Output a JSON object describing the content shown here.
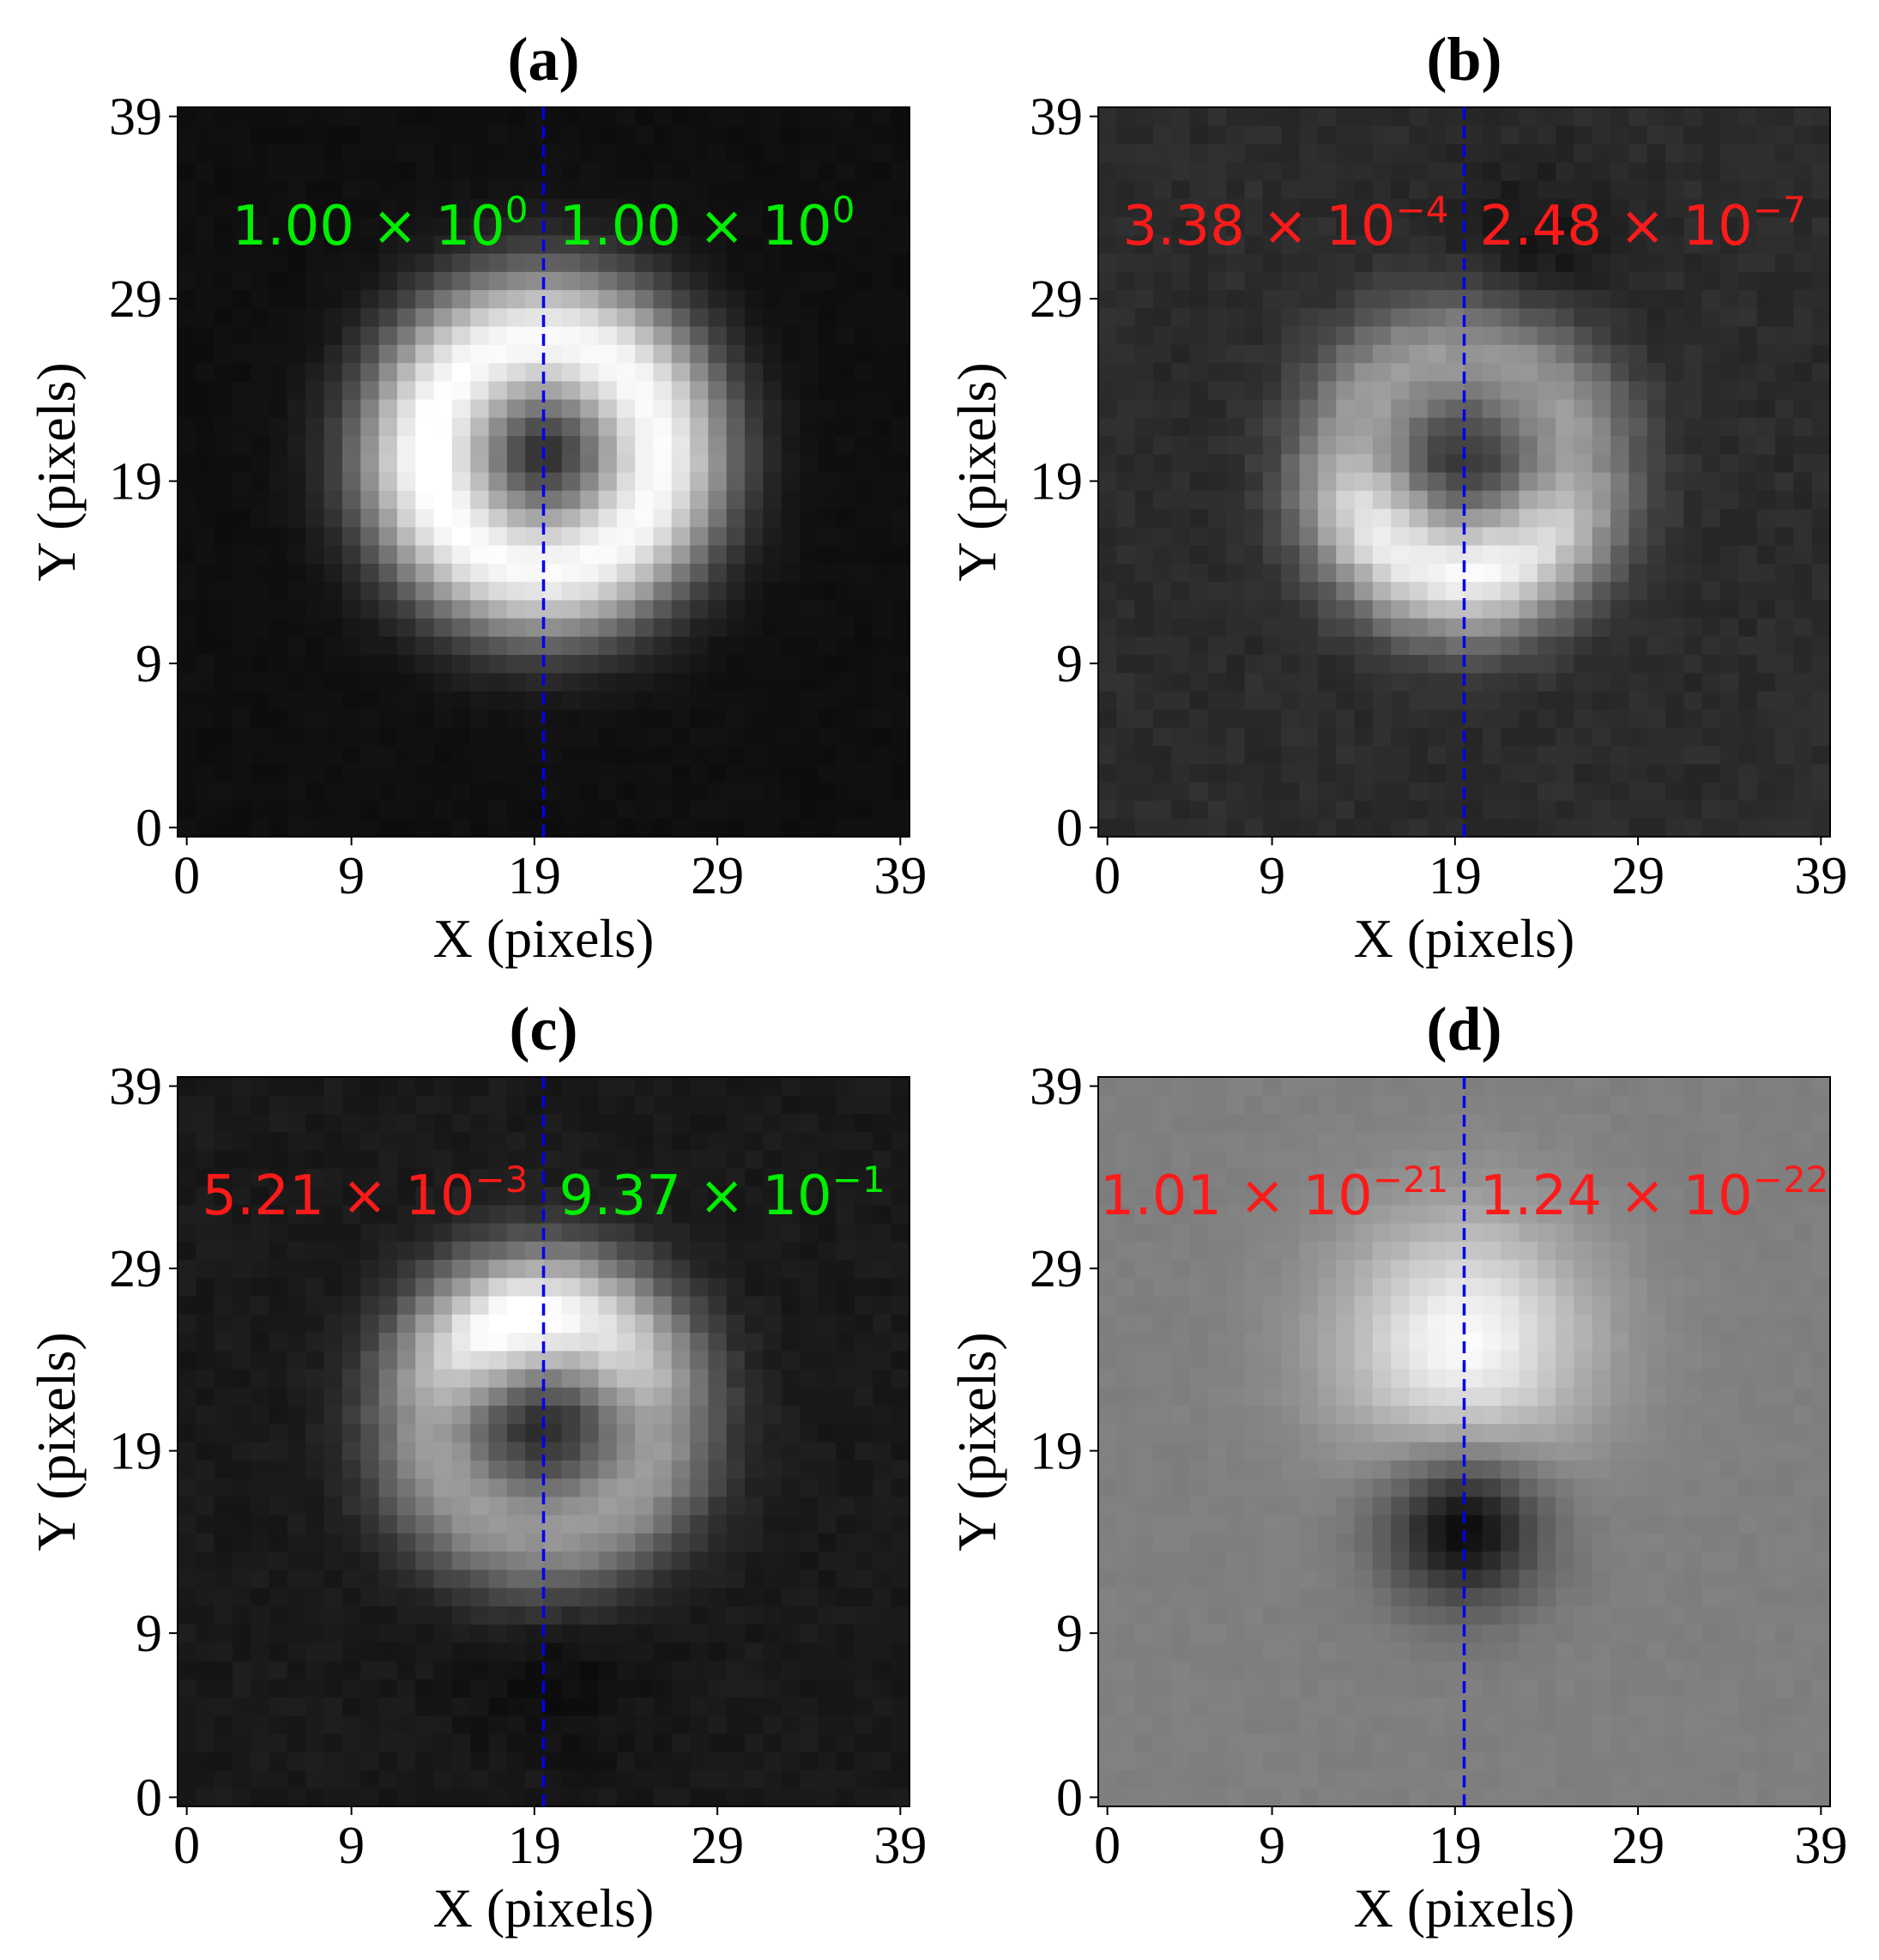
{
  "colors": {
    "pass": "#00ee00",
    "fail": "#ff1a1a",
    "center_line": "#0000ee"
  },
  "chart_data": [
    {
      "type": "heatmap",
      "title": "(a)",
      "xlabel": "X (pixels)",
      "ylabel": "Y (pixels)",
      "xticks": [
        "0",
        "9",
        "19",
        "29",
        "39"
      ],
      "yticks": [
        "0",
        "9",
        "19",
        "29",
        "39"
      ],
      "xlim": [
        0,
        39
      ],
      "ylim": [
        0,
        39
      ],
      "center_line_x": 19.5,
      "pattern": "ring",
      "background_level": 0.06,
      "metrics": [
        {
          "mantissa": "1.00",
          "exponent": "0",
          "status": "pass"
        },
        {
          "mantissa": "1.00",
          "exponent": "0",
          "status": "pass"
        }
      ]
    },
    {
      "type": "heatmap",
      "title": "(b)",
      "xlabel": "X (pixels)",
      "ylabel": "Y (pixels)",
      "xticks": [
        "0",
        "9",
        "19",
        "29",
        "39"
      ],
      "yticks": [
        "0",
        "9",
        "19",
        "29",
        "39"
      ],
      "xlim": [
        0,
        39
      ],
      "ylim": [
        0,
        39
      ],
      "center_line_x": 19.5,
      "pattern": "crescent",
      "background_level": 0.17,
      "metrics": [
        {
          "mantissa": "3.38",
          "exponent": "−4",
          "status": "fail"
        },
        {
          "mantissa": "2.48",
          "exponent": "−7",
          "status": "fail"
        }
      ]
    },
    {
      "type": "heatmap",
      "title": "(c)",
      "xlabel": "X (pixels)",
      "ylabel": "Y (pixels)",
      "xticks": [
        "0",
        "9",
        "19",
        "29",
        "39"
      ],
      "yticks": [
        "0",
        "9",
        "19",
        "29",
        "39"
      ],
      "xlim": [
        0,
        39
      ],
      "ylim": [
        0,
        39
      ],
      "center_line_x": 19.5,
      "pattern": "ring-top",
      "background_level": 0.1,
      "metrics": [
        {
          "mantissa": "5.21",
          "exponent": "−3",
          "status": "fail"
        },
        {
          "mantissa": "9.37",
          "exponent": "−1",
          "status": "pass"
        }
      ]
    },
    {
      "type": "heatmap",
      "title": "(d)",
      "xlabel": "X (pixels)",
      "ylabel": "Y (pixels)",
      "xticks": [
        "0",
        "9",
        "19",
        "29",
        "39"
      ],
      "yticks": [
        "0",
        "9",
        "19",
        "29",
        "39"
      ],
      "xlim": [
        0,
        39
      ],
      "ylim": [
        0,
        39
      ],
      "center_line_x": 19.5,
      "pattern": "dipole",
      "background_level": 0.5,
      "metrics": [
        {
          "mantissa": "1.01",
          "exponent": "−21",
          "status": "fail"
        },
        {
          "mantissa": "1.24",
          "exponent": "−22",
          "status": "fail"
        }
      ]
    }
  ]
}
